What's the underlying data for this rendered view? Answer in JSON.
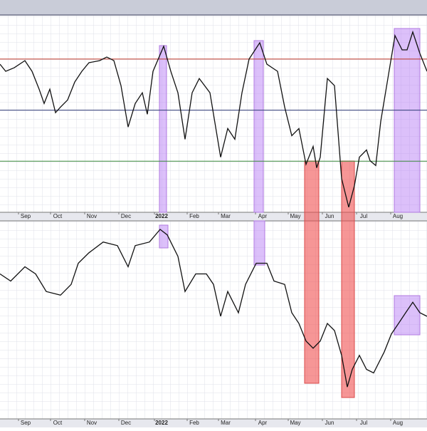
{
  "chart_data": [
    {
      "type": "line",
      "xlim": [
        0,
        300
      ],
      "ylim": [
        10,
        87
      ],
      "xticks": [
        {
          "value": 18,
          "label": "Sep"
        },
        {
          "value": 40.5,
          "label": "Oct"
        },
        {
          "value": 64.5,
          "label": "Nov"
        },
        {
          "value": 88.5,
          "label": "Dec"
        },
        {
          "value": 113.5,
          "label": "2022"
        },
        {
          "value": 136.5,
          "label": "Feb"
        },
        {
          "value": 158.5,
          "label": "Mar"
        },
        {
          "value": 184.5,
          "label": "Apr"
        },
        {
          "value": 207.5,
          "label": "May"
        },
        {
          "value": 231.5,
          "label": "Jun"
        },
        {
          "value": 255.5,
          "label": "Jul"
        },
        {
          "value": 279.5,
          "label": "Aug"
        }
      ],
      "reference_lines": [
        {
          "value": 70,
          "color": "#c0392b"
        },
        {
          "value": 50,
          "color": "#34407a"
        },
        {
          "value": 30,
          "color": "#3a8a3a"
        }
      ],
      "x": [
        0,
        4,
        10,
        17.5,
        22.5,
        27.5,
        31,
        35,
        39,
        42.5,
        47.5,
        52.5,
        57.5,
        62.5,
        70,
        75,
        80,
        85,
        90,
        95,
        100,
        103.5,
        107.5,
        115,
        120,
        125,
        130,
        135,
        140,
        147.5,
        155,
        160,
        165,
        170,
        175,
        182.5,
        187.5,
        195,
        200,
        205,
        210,
        215,
        220,
        222.5,
        225,
        230,
        235,
        240,
        245,
        249,
        252.5,
        257.5,
        260,
        264,
        267.5,
        272.5,
        277.5,
        282.5,
        286,
        290,
        295,
        300
      ],
      "series": [
        {
          "color": "#111111",
          "values": [
            68.0,
            65.2,
            66.6,
            69.4,
            65.2,
            58.2,
            52.6,
            58.2,
            49.0,
            51.2,
            54.0,
            61.0,
            65.2,
            68.6,
            69.4,
            70.8,
            69.4,
            59.6,
            43.4,
            52.6,
            56.8,
            48.4,
            65.2,
            75.0,
            65.2,
            56.8,
            38.6,
            56.8,
            62.4,
            56.8,
            31.6,
            42.8,
            38.6,
            56.8,
            70.0,
            76.4,
            68.0,
            65.2,
            51.2,
            40.0,
            42.8,
            28.8,
            35.8,
            27.4,
            31.6,
            62.4,
            59.6,
            23.2,
            12.0,
            20.4,
            31.6,
            34.4,
            30.2,
            28.3,
            45.6,
            62.4,
            79.2,
            73.6,
            73.6,
            80.6,
            72.2,
            65.2
          ]
        }
      ]
    },
    {
      "type": "line",
      "xlim": [
        0,
        300
      ],
      "ylim": [
        0,
        100
      ],
      "x": [
        0,
        7.5,
        17.5,
        25,
        32.5,
        42.5,
        50,
        55,
        62.5,
        72.5,
        82.5,
        90,
        95,
        105,
        112.5,
        117.5,
        125,
        130,
        137.5,
        145,
        150,
        155,
        160,
        167.5,
        172.5,
        180,
        187.5,
        192.5,
        200,
        205,
        210,
        215,
        220,
        225,
        230,
        235,
        240,
        244,
        247.5,
        252.5,
        257.5,
        262.5,
        270,
        275,
        280,
        285,
        290,
        295,
        300
      ],
      "series": [
        {
          "color": "#111111",
          "values": [
            73.2,
            69.6,
            76.8,
            73.2,
            64.3,
            62.5,
            67.9,
            78.6,
            83.9,
            89.3,
            87.5,
            76.8,
            87.5,
            89.3,
            95.7,
            92.9,
            82.1,
            64.3,
            73.2,
            73.2,
            67.9,
            51.8,
            64.3,
            53.6,
            67.9,
            78.6,
            78.6,
            69.6,
            67.9,
            53.6,
            48.2,
            39.3,
            35.7,
            39.3,
            48.2,
            44.6,
            32.1,
            16.1,
            25.0,
            32.1,
            25.0,
            23.2,
            33.9,
            42.9,
            48.2,
            53.6,
            58.9,
            53.6,
            51.8
          ]
        }
      ]
    }
  ]
}
